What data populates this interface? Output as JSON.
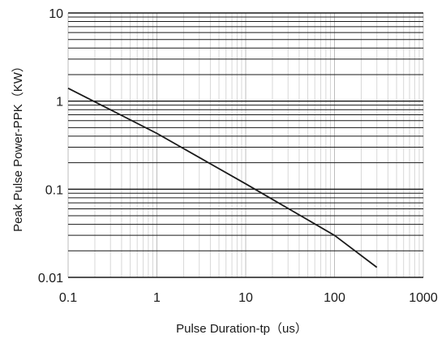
{
  "chart_data": {
    "type": "line",
    "xscale": "log",
    "yscale": "log",
    "xlim": [
      0.1,
      1000
    ],
    "ylim": [
      0.01,
      10
    ],
    "xlabel": "Pulse Duration-tp（us）",
    "ylabel": "Peak Pulse Power-PPK（KW）",
    "xticks": [
      "0.1",
      "1",
      "10",
      "100",
      "1000"
    ],
    "yticks": [
      "0.01",
      "0.1",
      "1",
      "10"
    ],
    "grid": true,
    "series": [
      {
        "x": [
          0.1,
          1,
          10,
          100,
          300
        ],
        "y": [
          1.4,
          0.43,
          0.115,
          0.03,
          0.013
        ]
      }
    ]
  }
}
